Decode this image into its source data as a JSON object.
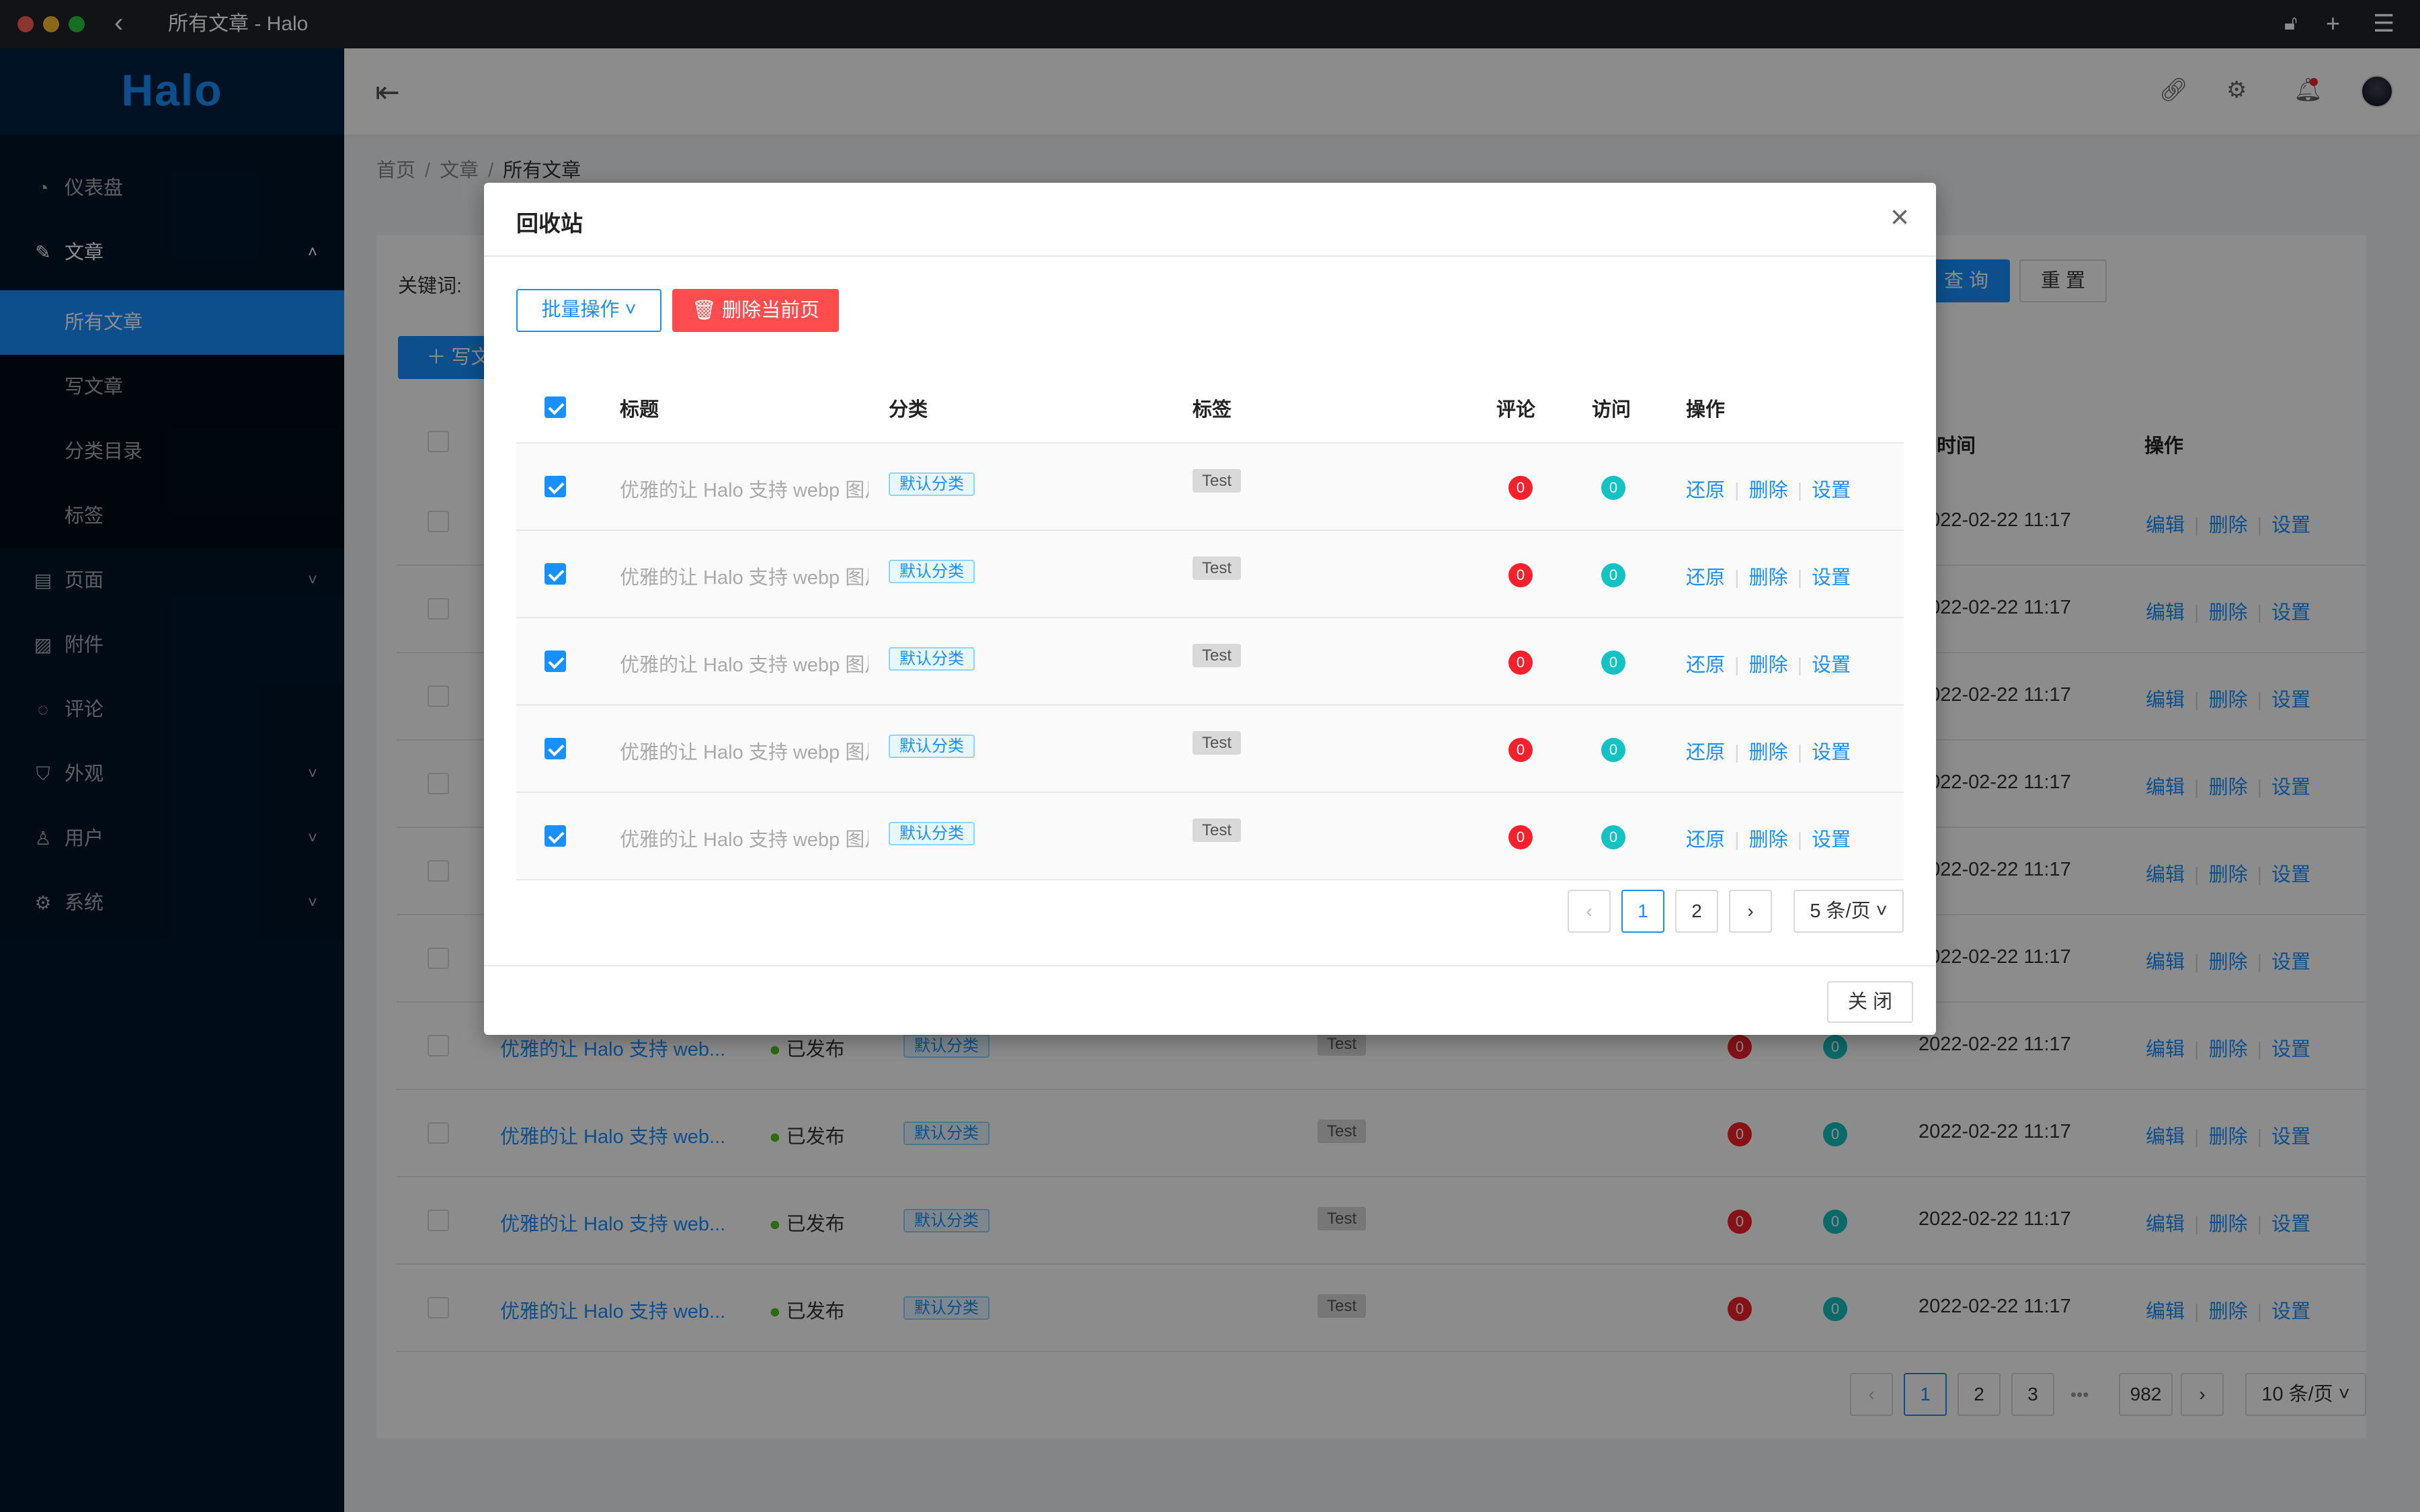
{
  "window": {
    "title": "所有文章 - Halo",
    "back_icon": "chevron-left-icon"
  },
  "colors": {
    "primary": "#1890ff",
    "danger": "#ff4d4f",
    "sidebar": "#001529"
  },
  "sidebar": {
    "logo": "Halo",
    "items": [
      {
        "label": "仪表盘",
        "icon": "dashboard-icon"
      },
      {
        "label": "文章",
        "icon": "edit-icon"
      },
      {
        "label": "页面",
        "icon": "book-icon"
      },
      {
        "label": "附件",
        "icon": "picture-icon"
      },
      {
        "label": "评论",
        "icon": "comment-icon"
      },
      {
        "label": "外观",
        "icon": "skin-icon"
      },
      {
        "label": "用户",
        "icon": "user-icon"
      },
      {
        "label": "系统",
        "icon": "setting-icon"
      }
    ],
    "sub_items": [
      "所有文章",
      "写文章",
      "分类目录",
      "标签"
    ]
  },
  "breadcrumb": [
    "首页",
    "文章",
    "所有文章"
  ],
  "bg": {
    "keyword_label": "关键词:",
    "query_label": "查 询",
    "reset_label": "重 置",
    "write_label": "写文",
    "col_time": "布时间",
    "col_action": "操作",
    "rows": [
      {
        "title": "优雅的让 Halo 支持 web...",
        "status": "已发布",
        "category": "默认分类",
        "tag": "Test",
        "comments": "0",
        "visits": "0",
        "time": "2022-02-22 11:17"
      }
    ],
    "row_time": "2022-02-22 11:17",
    "actions": [
      "编辑",
      "删除",
      "设置"
    ],
    "pages": [
      "1",
      "2",
      "3",
      "•••",
      "982"
    ],
    "page_size": "10 条/页"
  },
  "modal": {
    "title": "回收站",
    "batch_label": "批量操作",
    "delete_page_label": "删除当前页",
    "headers": {
      "title": "标题",
      "category": "分类",
      "tag": "标签",
      "comments": "评论",
      "visits": "访问",
      "action": "操作"
    },
    "rows": [
      {
        "title": "优雅的让 Halo 支持 webp 图片",
        "category": "默认分类",
        "tag": "Test",
        "comments": "0",
        "visits": "0"
      },
      {
        "title": "优雅的让 Halo 支持 webp 图片",
        "category": "默认分类",
        "tag": "Test",
        "comments": "0",
        "visits": "0"
      },
      {
        "title": "优雅的让 Halo 支持 webp 图片",
        "category": "默认分类",
        "tag": "Test",
        "comments": "0",
        "visits": "0"
      },
      {
        "title": "优雅的让 Halo 支持 webp 图片",
        "category": "默认分类",
        "tag": "Test",
        "comments": "0",
        "visits": "0"
      },
      {
        "title": "优雅的让 Halo 支持 webp 图片",
        "category": "默认分类",
        "tag": "Test",
        "comments": "0",
        "visits": "0"
      }
    ],
    "actions": [
      "还原",
      "删除",
      "设置"
    ],
    "pages": [
      "1",
      "2"
    ],
    "page_size": "5 条/页",
    "close_label": "关 闭"
  }
}
